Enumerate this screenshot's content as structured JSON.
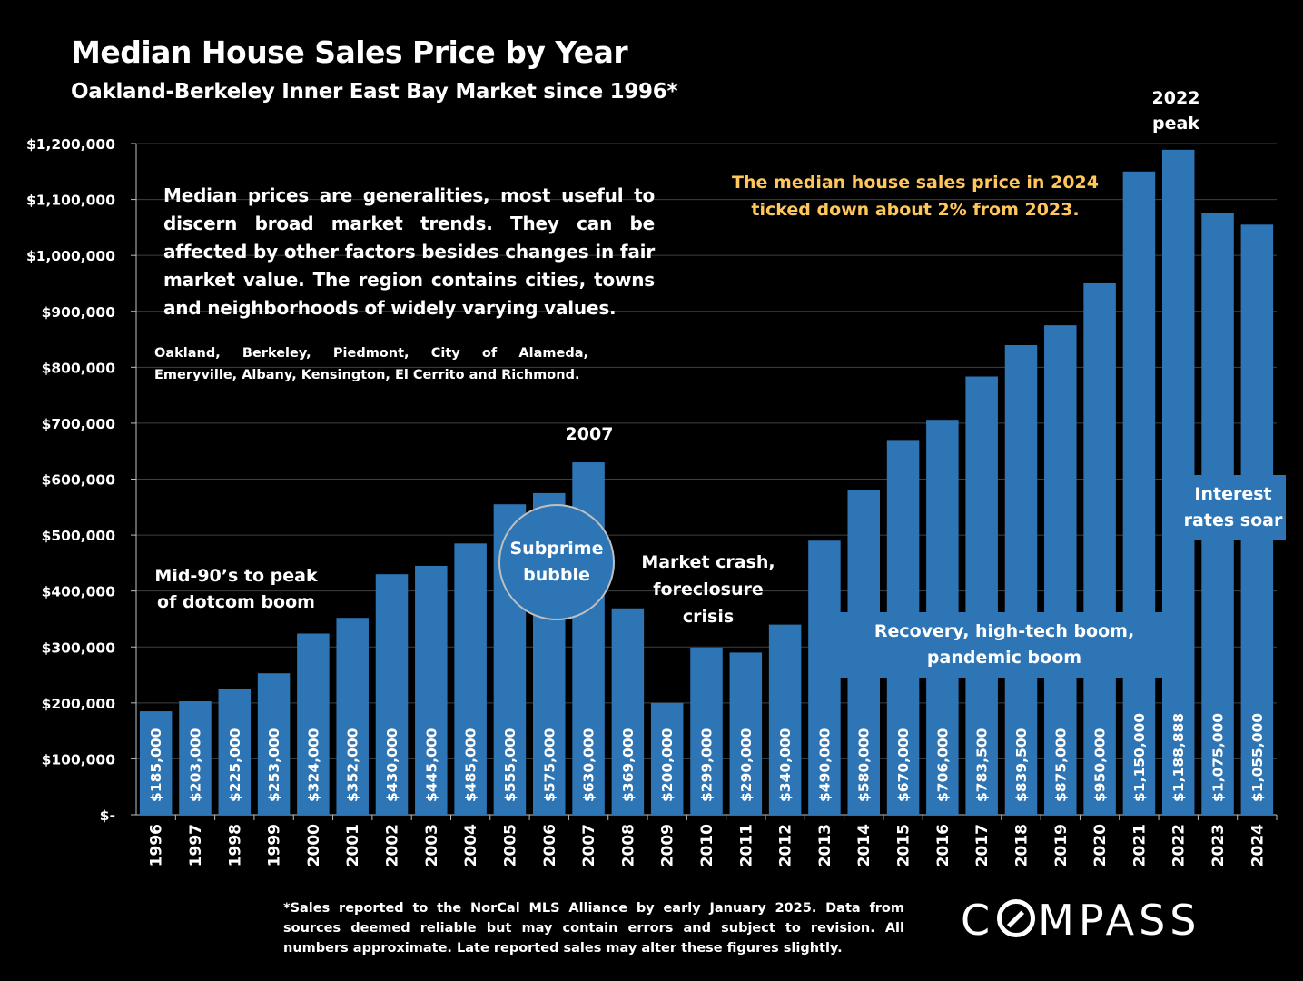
{
  "title": "Median House Sales Price by Year",
  "subtitle": "Oakland-Berkeley Inner East Bay Market since 1996*",
  "note_main": "Median prices are generalities, most useful to discern broad market trends. They can be affected by other factors besides changes in fair market value. The region contains cities, towns and neighborhoods of widely varying values.",
  "note_cities": "Oakland, Berkeley, Piedmont, City of Alameda, Emeryville, Albany, Kensington, El Cerrito and Richmond.",
  "callout_2024": "The median house sales price in 2024 ticked down about 2% from 2023.",
  "annotations": {
    "dotcom": "Mid-90’s to peak of dotcom boom",
    "subprime": "Subprime bubble",
    "crash": "Market crash, foreclosure crisis",
    "peak_2007": "2007",
    "recovery": "Recovery, high-tech boom, pandemic boom",
    "peak_2022": "2022 peak",
    "rates": "Interest rates soar"
  },
  "footnote": "*Sales reported to the NorCal MLS Alliance by early January 2025. Data from sources deemed reliable but may contain errors and subject to revision. All numbers approximate. Late reported sales may alter these figures slightly.",
  "logo": "COMPASS",
  "colors": {
    "bar": "#2E75B6",
    "background": "#000000",
    "callout": "#FFC65C",
    "text": "#FFFFFF",
    "grid": "#404040"
  },
  "chart_data": {
    "type": "bar",
    "categories": [
      "1996",
      "1997",
      "1998",
      "1999",
      "2000",
      "2001",
      "2002",
      "2003",
      "2004",
      "2005",
      "2006",
      "2007",
      "2008",
      "2009",
      "2010",
      "2011",
      "2012",
      "2013",
      "2014",
      "2015",
      "2016",
      "2017",
      "2018",
      "2019",
      "2020",
      "2021",
      "2022",
      "2023",
      "2024"
    ],
    "values": [
      185000,
      203000,
      225000,
      253000,
      324000,
      352000,
      430000,
      445000,
      485000,
      555000,
      575000,
      630000,
      369000,
      200000,
      299000,
      290000,
      340000,
      490000,
      580000,
      670000,
      706000,
      783500,
      839500,
      875000,
      950000,
      1150000,
      1188888,
      1075000,
      1055000
    ],
    "data_labels": [
      "$185,000",
      "$203,000",
      "$225,000",
      "$253,000",
      "$324,000",
      "$352,000",
      "$430,000",
      "$445,000",
      "$485,000",
      "$555,000",
      "$575,000",
      "$630,000",
      "$369,000",
      "$200,000",
      "$299,000",
      "$290,000",
      "$340,000",
      "$490,000",
      "$580,000",
      "$670,000",
      "$706,000",
      "$783,500",
      "$839,500",
      "$875,000",
      "$950,000",
      "$1,150,000",
      "$1,188,888",
      "$1,075,000",
      "$1,055,000"
    ],
    "y_ticks": [
      0,
      100000,
      200000,
      300000,
      400000,
      500000,
      600000,
      700000,
      800000,
      900000,
      1000000,
      1100000,
      1200000
    ],
    "y_tick_labels": [
      "$-",
      "$100,000",
      "$200,000",
      "$300,000",
      "$400,000",
      "$500,000",
      "$600,000",
      "$700,000",
      "$800,000",
      "$900,000",
      "$1,000,000",
      "$1,100,000",
      "$1,200,000"
    ],
    "ylim": [
      0,
      1200000
    ],
    "grid": true,
    "legend": "none"
  }
}
